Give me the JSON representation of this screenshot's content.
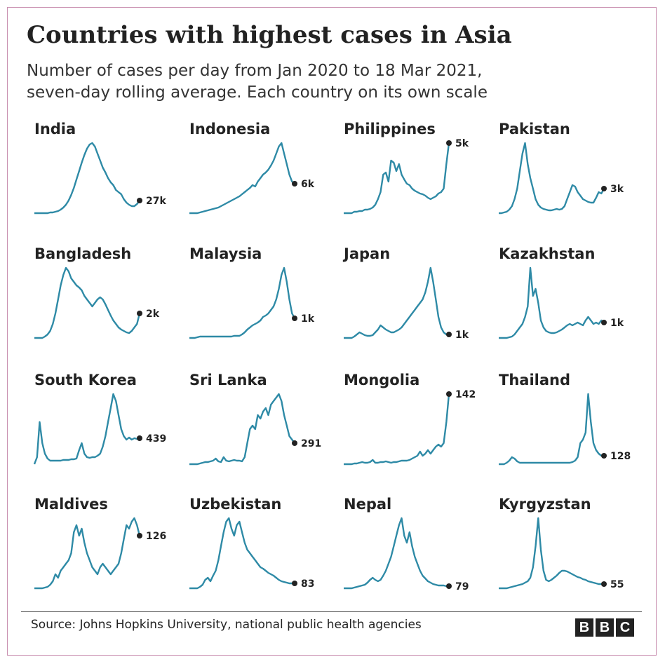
{
  "header": {
    "title": "Countries with highest cases in Asia",
    "subtitle_line1": "Number of cases per day from Jan 2020 to 18 Mar 2021,",
    "subtitle_line2": "seven-day rolling average. Each country on its own scale"
  },
  "footer": {
    "source": "Source: Johns Hopkins University, national public health agencies",
    "logo": [
      "B",
      "B",
      "C"
    ]
  },
  "colors": {
    "line": "#2e8aa6",
    "dot": "#222222"
  },
  "chart_data": {
    "type": "line",
    "title": "Countries with highest cases in Asia",
    "x_range": [
      "Jan 2020",
      "18 Mar 2021"
    ],
    "note": "Each country on its own scale; y values are shares of each country's own peak, the end value is the printed label.",
    "series": [
      {
        "name": "India",
        "end_label": "27k",
        "values": [
          0,
          0,
          0,
          0,
          0,
          0,
          0.01,
          0.01,
          0.02,
          0.03,
          0.05,
          0.08,
          0.12,
          0.18,
          0.26,
          0.36,
          0.48,
          0.6,
          0.72,
          0.83,
          0.92,
          0.98,
          1.0,
          0.95,
          0.85,
          0.75,
          0.65,
          0.58,
          0.5,
          0.44,
          0.4,
          0.33,
          0.3,
          0.27,
          0.2,
          0.15,
          0.12,
          0.1,
          0.1,
          0.13,
          0.18
        ]
      },
      {
        "name": "Indonesia",
        "end_label": "6k",
        "values": [
          0,
          0,
          0,
          0,
          0.01,
          0.02,
          0.03,
          0.04,
          0.05,
          0.06,
          0.07,
          0.08,
          0.1,
          0.12,
          0.14,
          0.16,
          0.18,
          0.2,
          0.22,
          0.24,
          0.27,
          0.3,
          0.33,
          0.36,
          0.4,
          0.38,
          0.45,
          0.5,
          0.55,
          0.58,
          0.62,
          0.68,
          0.75,
          0.85,
          0.95,
          1.0,
          0.85,
          0.7,
          0.55,
          0.45,
          0.42
        ]
      },
      {
        "name": "Philippines",
        "end_label": "5k",
        "values": [
          0,
          0,
          0,
          0,
          0.02,
          0.02,
          0.03,
          0.03,
          0.05,
          0.05,
          0.06,
          0.08,
          0.12,
          0.2,
          0.3,
          0.55,
          0.58,
          0.45,
          0.75,
          0.72,
          0.6,
          0.7,
          0.55,
          0.48,
          0.42,
          0.4,
          0.35,
          0.32,
          0.3,
          0.28,
          0.27,
          0.25,
          0.22,
          0.2,
          0.22,
          0.24,
          0.28,
          0.3,
          0.35,
          0.7,
          1.0
        ]
      },
      {
        "name": "Pakistan",
        "end_label": "3k",
        "values": [
          0,
          0,
          0.01,
          0.02,
          0.05,
          0.1,
          0.2,
          0.35,
          0.6,
          0.85,
          1.0,
          0.7,
          0.5,
          0.35,
          0.2,
          0.12,
          0.08,
          0.06,
          0.05,
          0.04,
          0.04,
          0.05,
          0.06,
          0.05,
          0.06,
          0.1,
          0.2,
          0.3,
          0.4,
          0.38,
          0.3,
          0.25,
          0.2,
          0.18,
          0.16,
          0.15,
          0.15,
          0.22,
          0.3,
          0.28,
          0.35
        ]
      },
      {
        "name": "Bangladesh",
        "end_label": "2k",
        "values": [
          0,
          0,
          0,
          0,
          0.02,
          0.05,
          0.1,
          0.2,
          0.35,
          0.55,
          0.75,
          0.9,
          1.0,
          0.95,
          0.85,
          0.8,
          0.75,
          0.72,
          0.68,
          0.6,
          0.55,
          0.5,
          0.45,
          0.5,
          0.55,
          0.58,
          0.55,
          0.48,
          0.4,
          0.32,
          0.25,
          0.2,
          0.15,
          0.12,
          0.1,
          0.08,
          0.07,
          0.1,
          0.15,
          0.2,
          0.35
        ]
      },
      {
        "name": "Malaysia",
        "end_label": "1k",
        "values": [
          0,
          0,
          0,
          0.01,
          0.02,
          0.02,
          0.02,
          0.02,
          0.02,
          0.02,
          0.02,
          0.02,
          0.02,
          0.02,
          0.02,
          0.02,
          0.02,
          0.03,
          0.03,
          0.03,
          0.05,
          0.08,
          0.12,
          0.15,
          0.18,
          0.2,
          0.22,
          0.25,
          0.3,
          0.32,
          0.35,
          0.4,
          0.45,
          0.55,
          0.7,
          0.9,
          1.0,
          0.8,
          0.55,
          0.35,
          0.28
        ]
      },
      {
        "name": "Japan",
        "end_label": "1k",
        "values": [
          0,
          0,
          0,
          0,
          0.02,
          0.05,
          0.08,
          0.06,
          0.04,
          0.03,
          0.03,
          0.04,
          0.08,
          0.12,
          0.18,
          0.15,
          0.12,
          0.1,
          0.08,
          0.08,
          0.1,
          0.12,
          0.15,
          0.2,
          0.25,
          0.3,
          0.35,
          0.4,
          0.45,
          0.5,
          0.55,
          0.65,
          0.8,
          1.0,
          0.8,
          0.55,
          0.3,
          0.15,
          0.08,
          0.05,
          0.05
        ]
      },
      {
        "name": "Kazakhstan",
        "end_label": "1k",
        "values": [
          0,
          0,
          0,
          0,
          0.01,
          0.02,
          0.05,
          0.1,
          0.15,
          0.2,
          0.3,
          0.45,
          1.0,
          0.6,
          0.7,
          0.5,
          0.25,
          0.15,
          0.1,
          0.08,
          0.07,
          0.07,
          0.08,
          0.1,
          0.12,
          0.15,
          0.18,
          0.2,
          0.18,
          0.2,
          0.22,
          0.2,
          0.18,
          0.25,
          0.3,
          0.25,
          0.2,
          0.22,
          0.2,
          0.25,
          0.22
        ]
      },
      {
        "name": "South Korea",
        "end_label": "439",
        "values": [
          0,
          0.1,
          0.6,
          0.3,
          0.15,
          0.08,
          0.05,
          0.05,
          0.05,
          0.05,
          0.05,
          0.06,
          0.06,
          0.06,
          0.07,
          0.07,
          0.08,
          0.2,
          0.3,
          0.15,
          0.1,
          0.09,
          0.1,
          0.1,
          0.12,
          0.15,
          0.25,
          0.4,
          0.6,
          0.8,
          1.0,
          0.9,
          0.7,
          0.5,
          0.4,
          0.35,
          0.38,
          0.35,
          0.37,
          0.36,
          0.37
        ]
      },
      {
        "name": "Sri Lanka",
        "end_label": "291",
        "values": [
          0,
          0,
          0,
          0,
          0.01,
          0.02,
          0.03,
          0.03,
          0.04,
          0.05,
          0.08,
          0.04,
          0.03,
          0.1,
          0.05,
          0.04,
          0.05,
          0.06,
          0.05,
          0.05,
          0.04,
          0.1,
          0.3,
          0.5,
          0.55,
          0.5,
          0.7,
          0.65,
          0.75,
          0.8,
          0.7,
          0.85,
          0.9,
          0.95,
          1.0,
          0.9,
          0.7,
          0.55,
          0.4,
          0.35,
          0.3
        ]
      },
      {
        "name": "Mongolia",
        "end_label": "142",
        "values": [
          0,
          0,
          0,
          0,
          0.01,
          0.01,
          0.02,
          0.03,
          0.02,
          0.02,
          0.03,
          0.06,
          0.02,
          0.02,
          0.03,
          0.03,
          0.04,
          0.03,
          0.02,
          0.03,
          0.03,
          0.04,
          0.05,
          0.05,
          0.05,
          0.06,
          0.08,
          0.1,
          0.12,
          0.18,
          0.12,
          0.15,
          0.2,
          0.15,
          0.2,
          0.25,
          0.28,
          0.25,
          0.3,
          0.6,
          1.0
        ]
      },
      {
        "name": "Thailand",
        "end_label": "128",
        "values": [
          0,
          0,
          0,
          0.02,
          0.05,
          0.1,
          0.08,
          0.04,
          0.02,
          0.02,
          0.02,
          0.02,
          0.02,
          0.02,
          0.02,
          0.02,
          0.02,
          0.02,
          0.02,
          0.02,
          0.02,
          0.02,
          0.02,
          0.02,
          0.02,
          0.02,
          0.02,
          0.02,
          0.03,
          0.05,
          0.1,
          0.3,
          0.35,
          0.45,
          1.0,
          0.6,
          0.3,
          0.2,
          0.15,
          0.12,
          0.12
        ]
      },
      {
        "name": "Maldives",
        "end_label": "126",
        "values": [
          0,
          0,
          0,
          0,
          0.01,
          0.02,
          0.05,
          0.1,
          0.2,
          0.15,
          0.25,
          0.3,
          0.35,
          0.4,
          0.5,
          0.8,
          0.9,
          0.75,
          0.85,
          0.65,
          0.5,
          0.4,
          0.3,
          0.25,
          0.2,
          0.3,
          0.35,
          0.3,
          0.25,
          0.2,
          0.25,
          0.3,
          0.35,
          0.5,
          0.7,
          0.9,
          0.85,
          0.95,
          1.0,
          0.9,
          0.75
        ]
      },
      {
        "name": "Uzbekistan",
        "end_label": "83",
        "values": [
          0,
          0,
          0,
          0,
          0.02,
          0.05,
          0.12,
          0.15,
          0.1,
          0.18,
          0.25,
          0.4,
          0.6,
          0.8,
          0.95,
          1.0,
          0.85,
          0.75,
          0.9,
          0.95,
          0.8,
          0.65,
          0.55,
          0.5,
          0.45,
          0.4,
          0.35,
          0.3,
          0.28,
          0.25,
          0.22,
          0.2,
          0.18,
          0.15,
          0.12,
          0.1,
          0.09,
          0.08,
          0.07,
          0.07,
          0.07
        ]
      },
      {
        "name": "Nepal",
        "end_label": "79",
        "values": [
          0,
          0,
          0,
          0,
          0.01,
          0.02,
          0.03,
          0.04,
          0.05,
          0.08,
          0.12,
          0.15,
          0.12,
          0.1,
          0.12,
          0.18,
          0.25,
          0.35,
          0.45,
          0.6,
          0.75,
          0.9,
          1.0,
          0.75,
          0.65,
          0.8,
          0.6,
          0.45,
          0.35,
          0.25,
          0.18,
          0.14,
          0.1,
          0.08,
          0.06,
          0.05,
          0.04,
          0.04,
          0.04,
          0.03,
          0.03
        ]
      },
      {
        "name": "Kyrgyzstan",
        "end_label": "55",
        "values": [
          0,
          0,
          0,
          0,
          0.01,
          0.02,
          0.03,
          0.04,
          0.05,
          0.06,
          0.08,
          0.1,
          0.15,
          0.3,
          0.6,
          1.0,
          0.55,
          0.25,
          0.12,
          0.1,
          0.12,
          0.15,
          0.18,
          0.22,
          0.25,
          0.25,
          0.24,
          0.22,
          0.2,
          0.18,
          0.16,
          0.15,
          0.13,
          0.12,
          0.1,
          0.09,
          0.08,
          0.07,
          0.06,
          0.06,
          0.06
        ]
      }
    ]
  }
}
